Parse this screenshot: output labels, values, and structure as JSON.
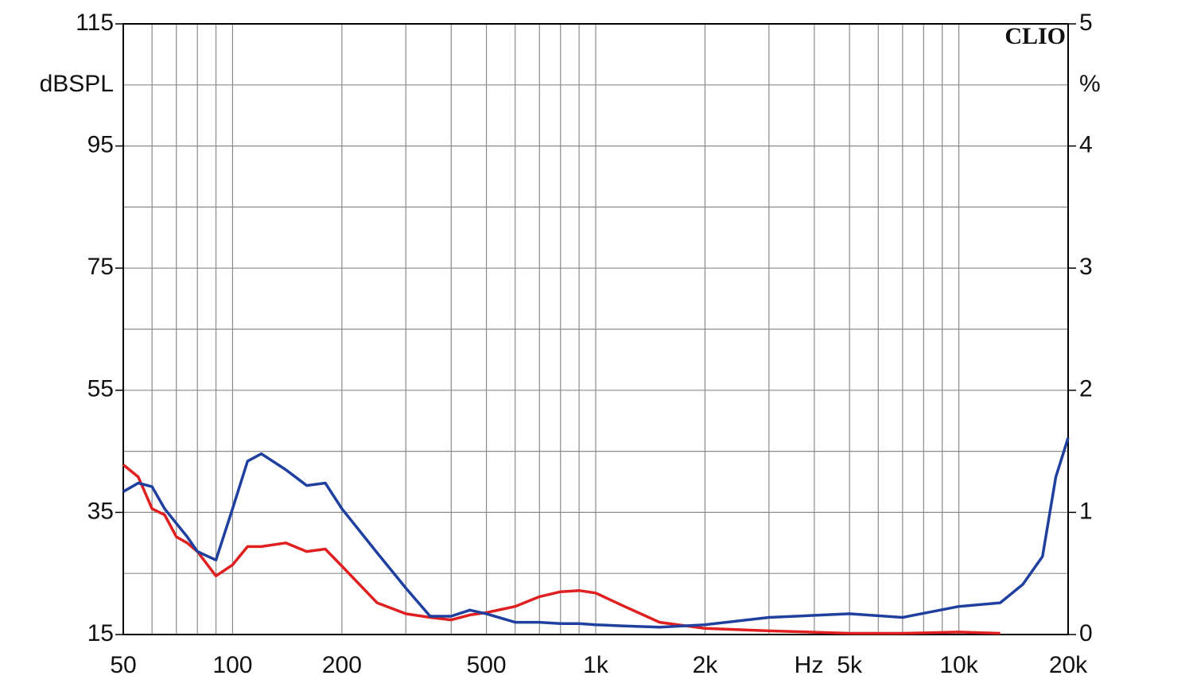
{
  "chart_data": {
    "type": "line",
    "annotation": "CLIO",
    "ylabel": "dBSPL",
    "y2label": "%",
    "xlabel": "Hz",
    "xscale": "log",
    "xlim": [
      50,
      20000
    ],
    "xticks": [
      50,
      100,
      200,
      500,
      {
        "value": 1000,
        "label": "1k"
      },
      {
        "value": 2000,
        "label": "2k"
      },
      {
        "value": 5000,
        "label": "5k"
      },
      {
        "value": 10000,
        "label": "10k"
      },
      {
        "value": 20000,
        "label": "20k"
      }
    ],
    "xminorticks": [
      60,
      70,
      80,
      90,
      300,
      400,
      600,
      700,
      800,
      900,
      3000,
      4000,
      6000,
      7000,
      8000,
      9000
    ],
    "ylim": [
      15,
      115
    ],
    "yticks": [
      15,
      35,
      55,
      75,
      95,
      115
    ],
    "yminorticks": [
      25,
      45,
      65,
      85,
      105
    ],
    "y2lim": [
      0,
      5
    ],
    "y2ticks": [
      0,
      1,
      2,
      3,
      4,
      5
    ],
    "grid": true,
    "x": [
      50,
      55,
      60,
      65,
      70,
      75,
      80,
      90,
      100,
      110,
      120,
      140,
      160,
      180,
      200,
      250,
      300,
      350,
      400,
      450,
      500,
      600,
      700,
      800,
      900,
      1000,
      1200,
      1500,
      2000,
      3000,
      5000,
      7000,
      10000,
      13000,
      15000,
      17000,
      18500,
      20000
    ],
    "series": [
      {
        "color": "#e02020",
        "axis": "y2",
        "values": [
          1.39,
          1.29,
          1.03,
          0.98,
          0.8,
          0.75,
          0.68,
          0.48,
          0.57,
          0.72,
          0.72,
          0.75,
          0.68,
          0.7,
          0.56,
          0.26,
          0.17,
          0.14,
          0.12,
          0.16,
          0.18,
          0.23,
          0.31,
          0.35,
          0.36,
          0.34,
          0.23,
          0.1,
          0.05,
          0.03,
          0.01,
          0.01,
          0.02,
          0.01,
          null,
          null,
          null,
          null
        ]
      },
      {
        "color": "#2040a0",
        "axis": "y2",
        "values": [
          1.17,
          1.24,
          1.21,
          1.03,
          0.91,
          0.8,
          0.68,
          0.61,
          1.03,
          1.42,
          1.48,
          1.35,
          1.22,
          1.24,
          1.03,
          0.67,
          0.38,
          0.15,
          0.15,
          0.2,
          0.17,
          0.1,
          0.1,
          0.09,
          0.09,
          0.08,
          0.07,
          0.06,
          0.08,
          0.14,
          0.17,
          0.14,
          0.23,
          0.26,
          0.41,
          0.64,
          1.29,
          1.61
        ]
      }
    ]
  }
}
